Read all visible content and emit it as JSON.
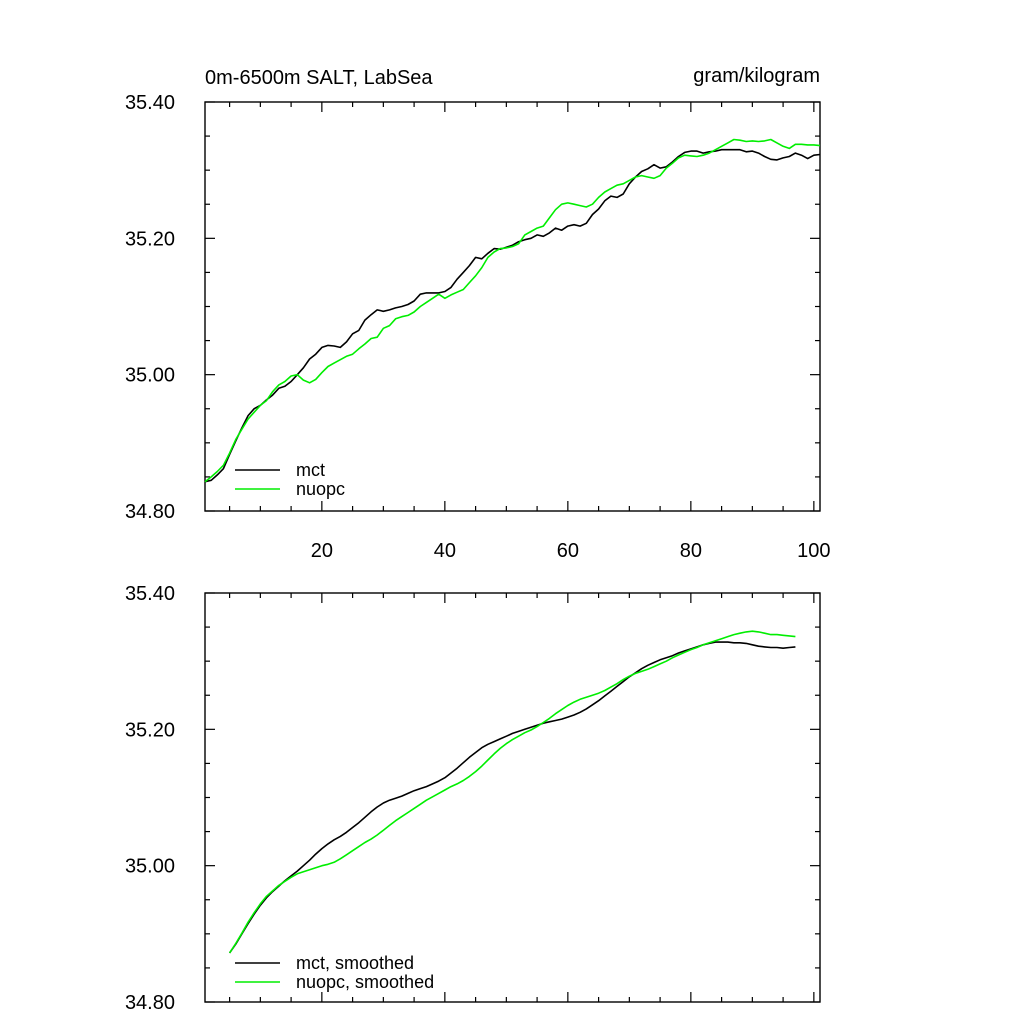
{
  "figure": {
    "title_left": "0m-6500m SALT, LabSea",
    "title_right": "gram/kilogram"
  },
  "chart_data": [
    {
      "type": "line",
      "title": "0m-6500m SALT, LabSea",
      "units": "gram/kilogram",
      "xlim": [
        1,
        101
      ],
      "ylim": [
        34.8,
        35.4
      ],
      "x_major_ticks": [
        20,
        40,
        60,
        80,
        100
      ],
      "x_tick_labels": [
        "20",
        "40",
        "60",
        "80",
        "100"
      ],
      "y_major_ticks": [
        34.8,
        35.0,
        35.2,
        35.4
      ],
      "y_tick_labels": [
        "34.80",
        "35.00",
        "35.20",
        "35.40"
      ],
      "legend_position": "bottom-left",
      "series": [
        {
          "name": "mct",
          "color": "#000000",
          "x": [
            1,
            2,
            3,
            4,
            5,
            6,
            7,
            8,
            9,
            10,
            11,
            12,
            13,
            14,
            15,
            16,
            17,
            18,
            19,
            20,
            21,
            22,
            23,
            24,
            25,
            26,
            27,
            28,
            29,
            30,
            31,
            32,
            33,
            34,
            35,
            36,
            37,
            38,
            39,
            40,
            41,
            42,
            43,
            44,
            45,
            46,
            47,
            48,
            49,
            50,
            51,
            52,
            53,
            54,
            55,
            56,
            57,
            58,
            59,
            60,
            61,
            62,
            63,
            64,
            65,
            66,
            67,
            68,
            69,
            70,
            71,
            72,
            73,
            74,
            75,
            76,
            77,
            78,
            79,
            80,
            81,
            82,
            83,
            84,
            85,
            86,
            87,
            88,
            89,
            90,
            91,
            92,
            93,
            94,
            95,
            96,
            97,
            98,
            99,
            100,
            101
          ],
          "values": [
            34.843,
            34.845,
            34.853,
            34.862,
            34.883,
            34.903,
            34.922,
            34.94,
            34.95,
            34.955,
            34.963,
            34.97,
            34.98,
            34.983,
            34.99,
            35.0,
            35.01,
            35.023,
            35.03,
            35.04,
            35.043,
            35.042,
            35.04,
            35.048,
            35.06,
            35.065,
            35.08,
            35.088,
            35.095,
            35.093,
            35.095,
            35.098,
            35.1,
            35.103,
            35.108,
            35.118,
            35.12,
            35.12,
            35.12,
            35.122,
            35.128,
            35.14,
            35.15,
            35.16,
            35.172,
            35.17,
            35.178,
            35.185,
            35.184,
            35.187,
            35.19,
            35.195,
            35.198,
            35.2,
            35.205,
            35.203,
            35.208,
            35.215,
            35.212,
            35.218,
            35.22,
            35.218,
            35.222,
            35.235,
            35.243,
            35.255,
            35.262,
            35.26,
            35.265,
            35.28,
            35.29,
            35.298,
            35.302,
            35.308,
            35.303,
            35.305,
            35.312,
            35.32,
            35.326,
            35.328,
            35.328,
            35.325,
            35.327,
            35.328,
            35.33,
            35.33,
            35.33,
            35.33,
            35.327,
            35.328,
            35.325,
            35.32,
            35.316,
            35.315,
            35.318,
            35.32,
            35.325,
            35.322,
            35.317,
            35.322,
            35.323
          ]
        },
        {
          "name": "nuopc",
          "color": "#00ee00",
          "x": [
            1,
            2,
            3,
            4,
            5,
            6,
            7,
            8,
            9,
            10,
            11,
            12,
            13,
            14,
            15,
            16,
            17,
            18,
            19,
            20,
            21,
            22,
            23,
            24,
            25,
            26,
            27,
            28,
            29,
            30,
            31,
            32,
            33,
            34,
            35,
            36,
            37,
            38,
            39,
            40,
            41,
            42,
            43,
            44,
            45,
            46,
            47,
            48,
            49,
            50,
            51,
            52,
            53,
            54,
            55,
            56,
            57,
            58,
            59,
            60,
            61,
            62,
            63,
            64,
            65,
            66,
            67,
            68,
            69,
            70,
            71,
            72,
            73,
            74,
            75,
            76,
            77,
            78,
            79,
            80,
            81,
            82,
            83,
            84,
            85,
            86,
            87,
            88,
            89,
            90,
            91,
            92,
            93,
            94,
            95,
            96,
            97,
            98,
            99,
            100,
            101
          ],
          "values": [
            34.843,
            34.85,
            34.858,
            34.867,
            34.885,
            34.905,
            34.92,
            34.935,
            34.945,
            34.955,
            34.962,
            34.975,
            34.985,
            34.99,
            34.998,
            35.0,
            34.992,
            34.988,
            34.993,
            35.003,
            35.012,
            35.017,
            35.022,
            35.027,
            35.03,
            35.038,
            35.045,
            35.053,
            35.055,
            35.068,
            35.072,
            35.082,
            35.085,
            35.087,
            35.092,
            35.1,
            35.106,
            35.112,
            35.118,
            35.112,
            35.117,
            35.121,
            35.125,
            35.135,
            35.145,
            35.157,
            35.172,
            35.18,
            35.185,
            35.186,
            35.188,
            35.192,
            35.205,
            35.21,
            35.215,
            35.218,
            35.23,
            35.242,
            35.25,
            35.252,
            35.25,
            35.248,
            35.246,
            35.25,
            35.26,
            35.268,
            35.273,
            35.278,
            35.28,
            35.285,
            35.29,
            35.292,
            35.29,
            35.288,
            35.292,
            35.303,
            35.31,
            35.318,
            35.322,
            35.321,
            35.32,
            35.322,
            35.325,
            35.33,
            35.335,
            35.34,
            35.345,
            35.344,
            35.342,
            35.343,
            35.342,
            35.343,
            35.345,
            35.34,
            35.335,
            35.332,
            35.338,
            35.338,
            35.337,
            35.337,
            35.336
          ]
        }
      ]
    },
    {
      "type": "line",
      "title": "",
      "xlim": [
        1,
        101
      ],
      "ylim": [
        34.8,
        35.4
      ],
      "y_major_ticks": [
        34.8,
        35.0,
        35.2,
        35.4
      ],
      "y_tick_labels": [
        "34.80",
        "35.00",
        "35.20",
        "35.40"
      ],
      "legend_position": "bottom-left",
      "series": [
        {
          "name": "mct, smoothed",
          "color": "#000000",
          "x": [
            5,
            6,
            7,
            8,
            9,
            10,
            11,
            12,
            13,
            14,
            15,
            16,
            17,
            18,
            19,
            20,
            21,
            22,
            23,
            24,
            25,
            26,
            27,
            28,
            29,
            30,
            31,
            32,
            33,
            34,
            35,
            36,
            37,
            38,
            39,
            40,
            41,
            42,
            43,
            44,
            45,
            46,
            47,
            48,
            49,
            50,
            51,
            52,
            53,
            54,
            55,
            56,
            57,
            58,
            59,
            60,
            61,
            62,
            63,
            64,
            65,
            66,
            67,
            68,
            69,
            70,
            71,
            72,
            73,
            74,
            75,
            76,
            77,
            78,
            79,
            80,
            81,
            82,
            83,
            84,
            85,
            86,
            87,
            88,
            89,
            90,
            91,
            92,
            93,
            94,
            95,
            96,
            97
          ],
          "values": [
            34.872,
            34.885,
            34.9,
            34.915,
            34.929,
            34.942,
            34.953,
            34.962,
            34.97,
            34.978,
            34.985,
            34.992,
            35.0,
            35.008,
            35.017,
            35.025,
            35.032,
            35.038,
            35.043,
            35.049,
            35.056,
            35.063,
            35.071,
            35.079,
            35.086,
            35.092,
            35.096,
            35.099,
            35.102,
            35.106,
            35.11,
            35.113,
            35.116,
            35.12,
            35.124,
            35.129,
            35.136,
            35.143,
            35.151,
            35.159,
            35.166,
            35.173,
            35.178,
            35.182,
            35.186,
            35.19,
            35.194,
            35.197,
            35.2,
            35.203,
            35.206,
            35.209,
            35.211,
            35.213,
            35.215,
            35.218,
            35.221,
            35.225,
            35.23,
            35.236,
            35.242,
            35.249,
            35.256,
            35.263,
            35.27,
            35.277,
            35.283,
            35.289,
            35.294,
            35.298,
            35.302,
            35.305,
            35.308,
            35.312,
            35.315,
            35.318,
            35.321,
            35.324,
            35.326,
            35.328,
            35.328,
            35.328,
            35.327,
            35.327,
            35.326,
            35.324,
            35.322,
            35.321,
            35.32,
            35.32,
            35.319,
            35.32,
            35.321
          ]
        },
        {
          "name": "nuopc, smoothed",
          "color": "#00ee00",
          "x": [
            5,
            6,
            7,
            8,
            9,
            10,
            11,
            12,
            13,
            14,
            15,
            16,
            17,
            18,
            19,
            20,
            21,
            22,
            23,
            24,
            25,
            26,
            27,
            28,
            29,
            30,
            31,
            32,
            33,
            34,
            35,
            36,
            37,
            38,
            39,
            40,
            41,
            42,
            43,
            44,
            45,
            46,
            47,
            48,
            49,
            50,
            51,
            52,
            53,
            54,
            55,
            56,
            57,
            58,
            59,
            60,
            61,
            62,
            63,
            64,
            65,
            66,
            67,
            68,
            69,
            70,
            71,
            72,
            73,
            74,
            75,
            76,
            77,
            78,
            79,
            80,
            81,
            82,
            83,
            84,
            85,
            86,
            87,
            88,
            89,
            90,
            91,
            92,
            93,
            94,
            95,
            96,
            97
          ],
          "values": [
            34.872,
            34.886,
            34.901,
            34.917,
            34.931,
            34.944,
            34.955,
            34.963,
            34.971,
            34.977,
            34.983,
            34.988,
            34.991,
            34.994,
            34.997,
            35.0,
            35.002,
            35.005,
            35.01,
            35.016,
            35.022,
            35.028,
            35.034,
            35.039,
            35.045,
            35.052,
            35.059,
            35.066,
            35.072,
            35.078,
            35.084,
            35.09,
            35.096,
            35.101,
            35.106,
            35.111,
            35.116,
            35.12,
            35.125,
            35.131,
            35.138,
            35.146,
            35.155,
            35.164,
            35.172,
            35.179,
            35.185,
            35.19,
            35.195,
            35.199,
            35.204,
            35.21,
            35.216,
            35.223,
            35.229,
            35.235,
            35.24,
            35.244,
            35.247,
            35.25,
            35.253,
            35.257,
            35.262,
            35.267,
            35.273,
            35.278,
            35.282,
            35.285,
            35.288,
            35.292,
            35.296,
            35.3,
            35.305,
            35.309,
            35.313,
            35.317,
            35.32,
            35.324,
            35.327,
            35.33,
            35.333,
            35.336,
            35.339,
            35.341,
            35.343,
            35.344,
            35.343,
            35.341,
            35.339,
            35.339,
            35.338,
            35.337,
            35.336
          ]
        }
      ]
    }
  ]
}
